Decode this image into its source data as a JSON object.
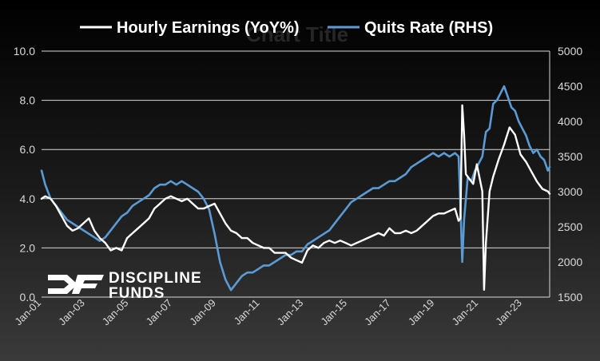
{
  "colors": {
    "earnings": "#ffffff",
    "quits": "#5b9bd5",
    "grid": "#d9d9d9",
    "background_top": "#000000",
    "background_bottom": "#3a3a3a"
  },
  "watermark": {
    "line1": "DISCIPLINE",
    "line2": "FUNDS"
  },
  "chart_data": {
    "type": "line",
    "title": "Chart Title",
    "legend_position": "top",
    "grid": true,
    "x_tick_labels": [
      "Jan-01",
      "Jan-03",
      "Jan-05",
      "Jan-07",
      "Jan-09",
      "Jan-11",
      "Jan-13",
      "Jan-15",
      "Jan-17",
      "Jan-19",
      "Jan-21",
      "Jan-23"
    ],
    "x_range": [
      "2001-01",
      "2024-04"
    ],
    "y_left": {
      "ticks": [
        "0.0",
        "2.0",
        "4.0",
        "6.0",
        "8.0",
        "10.0"
      ],
      "range": [
        0,
        10
      ]
    },
    "y_right": {
      "ticks": [
        "1500",
        "2000",
        "2500",
        "3000",
        "3500",
        "4000",
        "4500",
        "5000"
      ],
      "range": [
        1500,
        5000
      ]
    },
    "series": [
      {
        "name": "Hourly Earnings (YoY%)",
        "axis": "left",
        "points": [
          [
            "2001-01",
            4.0
          ],
          [
            "2001-03",
            4.1
          ],
          [
            "2001-06",
            4.0
          ],
          [
            "2001-09",
            3.7
          ],
          [
            "2001-12",
            3.3
          ],
          [
            "2002-03",
            2.9
          ],
          [
            "2002-06",
            2.7
          ],
          [
            "2002-09",
            2.8
          ],
          [
            "2002-12",
            3.0
          ],
          [
            "2003-03",
            3.2
          ],
          [
            "2003-06",
            2.7
          ],
          [
            "2003-09",
            2.4
          ],
          [
            "2003-12",
            2.2
          ],
          [
            "2004-03",
            1.9
          ],
          [
            "2004-06",
            2.0
          ],
          [
            "2004-09",
            1.9
          ],
          [
            "2004-12",
            2.4
          ],
          [
            "2005-03",
            2.6
          ],
          [
            "2005-06",
            2.8
          ],
          [
            "2005-09",
            3.0
          ],
          [
            "2005-12",
            3.2
          ],
          [
            "2006-03",
            3.6
          ],
          [
            "2006-06",
            3.8
          ],
          [
            "2006-09",
            4.0
          ],
          [
            "2006-12",
            4.1
          ],
          [
            "2007-03",
            4.0
          ],
          [
            "2007-06",
            3.9
          ],
          [
            "2007-09",
            4.0
          ],
          [
            "2007-12",
            3.8
          ],
          [
            "2008-03",
            3.6
          ],
          [
            "2008-06",
            3.6
          ],
          [
            "2008-09",
            3.7
          ],
          [
            "2008-12",
            3.8
          ],
          [
            "2009-03",
            3.4
          ],
          [
            "2009-06",
            3.0
          ],
          [
            "2009-09",
            2.7
          ],
          [
            "2009-12",
            2.6
          ],
          [
            "2010-03",
            2.4
          ],
          [
            "2010-06",
            2.4
          ],
          [
            "2010-09",
            2.2
          ],
          [
            "2010-12",
            2.1
          ],
          [
            "2011-03",
            2.0
          ],
          [
            "2011-06",
            2.0
          ],
          [
            "2011-09",
            1.8
          ],
          [
            "2011-12",
            1.8
          ],
          [
            "2012-03",
            1.8
          ],
          [
            "2012-06",
            1.6
          ],
          [
            "2012-09",
            1.5
          ],
          [
            "2012-12",
            1.4
          ],
          [
            "2013-03",
            1.9
          ],
          [
            "2013-06",
            2.1
          ],
          [
            "2013-09",
            2.0
          ],
          [
            "2013-12",
            2.2
          ],
          [
            "2014-03",
            2.3
          ],
          [
            "2014-06",
            2.2
          ],
          [
            "2014-09",
            2.3
          ],
          [
            "2014-12",
            2.2
          ],
          [
            "2015-03",
            2.1
          ],
          [
            "2015-06",
            2.2
          ],
          [
            "2015-09",
            2.3
          ],
          [
            "2015-12",
            2.4
          ],
          [
            "2016-03",
            2.5
          ],
          [
            "2016-06",
            2.6
          ],
          [
            "2016-09",
            2.5
          ],
          [
            "2016-12",
            2.8
          ],
          [
            "2017-03",
            2.6
          ],
          [
            "2017-06",
            2.6
          ],
          [
            "2017-09",
            2.7
          ],
          [
            "2017-12",
            2.6
          ],
          [
            "2018-03",
            2.7
          ],
          [
            "2018-06",
            2.9
          ],
          [
            "2018-09",
            3.1
          ],
          [
            "2018-12",
            3.3
          ],
          [
            "2019-03",
            3.4
          ],
          [
            "2019-06",
            3.4
          ],
          [
            "2019-09",
            3.5
          ],
          [
            "2019-12",
            3.6
          ],
          [
            "2020-02",
            3.1
          ],
          [
            "2020-03",
            3.2
          ],
          [
            "2020-04",
            7.8
          ],
          [
            "2020-05",
            6.6
          ],
          [
            "2020-06",
            5.0
          ],
          [
            "2020-08",
            4.8
          ],
          [
            "2020-10",
            4.6
          ],
          [
            "2020-12",
            5.4
          ],
          [
            "2021-03",
            4.3
          ],
          [
            "2021-04",
            0.3
          ],
          [
            "2021-05",
            2.2
          ],
          [
            "2021-07",
            4.3
          ],
          [
            "2021-09",
            4.9
          ],
          [
            "2021-12",
            5.6
          ],
          [
            "2022-03",
            6.2
          ],
          [
            "2022-06",
            6.9
          ],
          [
            "2022-09",
            6.6
          ],
          [
            "2022-12",
            5.8
          ],
          [
            "2023-03",
            5.5
          ],
          [
            "2023-06",
            5.1
          ],
          [
            "2023-09",
            4.7
          ],
          [
            "2023-12",
            4.4
          ],
          [
            "2024-03",
            4.3
          ],
          [
            "2024-04",
            4.2
          ]
        ]
      },
      {
        "name": "Quits Rate (RHS)",
        "axis": "right",
        "points": [
          [
            "2001-01",
            3300
          ],
          [
            "2001-03",
            3100
          ],
          [
            "2001-06",
            2900
          ],
          [
            "2001-09",
            2800
          ],
          [
            "2001-12",
            2700
          ],
          [
            "2002-03",
            2600
          ],
          [
            "2002-06",
            2550
          ],
          [
            "2002-09",
            2500
          ],
          [
            "2002-12",
            2450
          ],
          [
            "2003-03",
            2400
          ],
          [
            "2003-06",
            2350
          ],
          [
            "2003-09",
            2300
          ],
          [
            "2003-12",
            2350
          ],
          [
            "2004-03",
            2450
          ],
          [
            "2004-06",
            2550
          ],
          [
            "2004-09",
            2650
          ],
          [
            "2004-12",
            2700
          ],
          [
            "2005-03",
            2800
          ],
          [
            "2005-06",
            2850
          ],
          [
            "2005-09",
            2900
          ],
          [
            "2005-12",
            2950
          ],
          [
            "2006-03",
            3050
          ],
          [
            "2006-06",
            3100
          ],
          [
            "2006-09",
            3100
          ],
          [
            "2006-12",
            3150
          ],
          [
            "2007-03",
            3100
          ],
          [
            "2007-06",
            3150
          ],
          [
            "2007-09",
            3100
          ],
          [
            "2007-12",
            3050
          ],
          [
            "2008-03",
            3000
          ],
          [
            "2008-06",
            2900
          ],
          [
            "2008-09",
            2750
          ],
          [
            "2008-12",
            2400
          ],
          [
            "2009-03",
            2000
          ],
          [
            "2009-06",
            1750
          ],
          [
            "2009-09",
            1600
          ],
          [
            "2009-12",
            1700
          ],
          [
            "2010-03",
            1800
          ],
          [
            "2010-06",
            1850
          ],
          [
            "2010-09",
            1850
          ],
          [
            "2010-12",
            1900
          ],
          [
            "2011-03",
            1950
          ],
          [
            "2011-06",
            1950
          ],
          [
            "2011-09",
            2000
          ],
          [
            "2011-12",
            2050
          ],
          [
            "2012-03",
            2100
          ],
          [
            "2012-06",
            2100
          ],
          [
            "2012-09",
            2150
          ],
          [
            "2012-12",
            2150
          ],
          [
            "2013-03",
            2250
          ],
          [
            "2013-06",
            2300
          ],
          [
            "2013-09",
            2350
          ],
          [
            "2013-12",
            2400
          ],
          [
            "2014-03",
            2450
          ],
          [
            "2014-06",
            2550
          ],
          [
            "2014-09",
            2650
          ],
          [
            "2014-12",
            2750
          ],
          [
            "2015-03",
            2850
          ],
          [
            "2015-06",
            2900
          ],
          [
            "2015-09",
            2950
          ],
          [
            "2015-12",
            3000
          ],
          [
            "2016-03",
            3050
          ],
          [
            "2016-06",
            3050
          ],
          [
            "2016-09",
            3100
          ],
          [
            "2016-12",
            3150
          ],
          [
            "2017-03",
            3150
          ],
          [
            "2017-06",
            3200
          ],
          [
            "2017-09",
            3250
          ],
          [
            "2017-12",
            3350
          ],
          [
            "2018-03",
            3400
          ],
          [
            "2018-06",
            3450
          ],
          [
            "2018-09",
            3500
          ],
          [
            "2018-12",
            3550
          ],
          [
            "2019-03",
            3500
          ],
          [
            "2019-06",
            3550
          ],
          [
            "2019-09",
            3500
          ],
          [
            "2019-12",
            3550
          ],
          [
            "2020-02",
            3500
          ],
          [
            "2020-03",
            2800
          ],
          [
            "2020-04",
            2000
          ],
          [
            "2020-05",
            2600
          ],
          [
            "2020-07",
            3200
          ],
          [
            "2020-09",
            3150
          ],
          [
            "2020-11",
            3300
          ],
          [
            "2021-01",
            3400
          ],
          [
            "2021-03",
            3500
          ],
          [
            "2021-05",
            3850
          ],
          [
            "2021-07",
            3900
          ],
          [
            "2021-09",
            4250
          ],
          [
            "2021-11",
            4300
          ],
          [
            "2022-01",
            4400
          ],
          [
            "2022-03",
            4500
          ],
          [
            "2022-05",
            4350
          ],
          [
            "2022-07",
            4200
          ],
          [
            "2022-09",
            4150
          ],
          [
            "2022-11",
            4000
          ],
          [
            "2023-01",
            3900
          ],
          [
            "2023-03",
            3800
          ],
          [
            "2023-05",
            3650
          ],
          [
            "2023-07",
            3550
          ],
          [
            "2023-09",
            3600
          ],
          [
            "2023-11",
            3500
          ],
          [
            "2024-01",
            3450
          ],
          [
            "2024-03",
            3300
          ],
          [
            "2024-04",
            3350
          ]
        ]
      }
    ]
  }
}
